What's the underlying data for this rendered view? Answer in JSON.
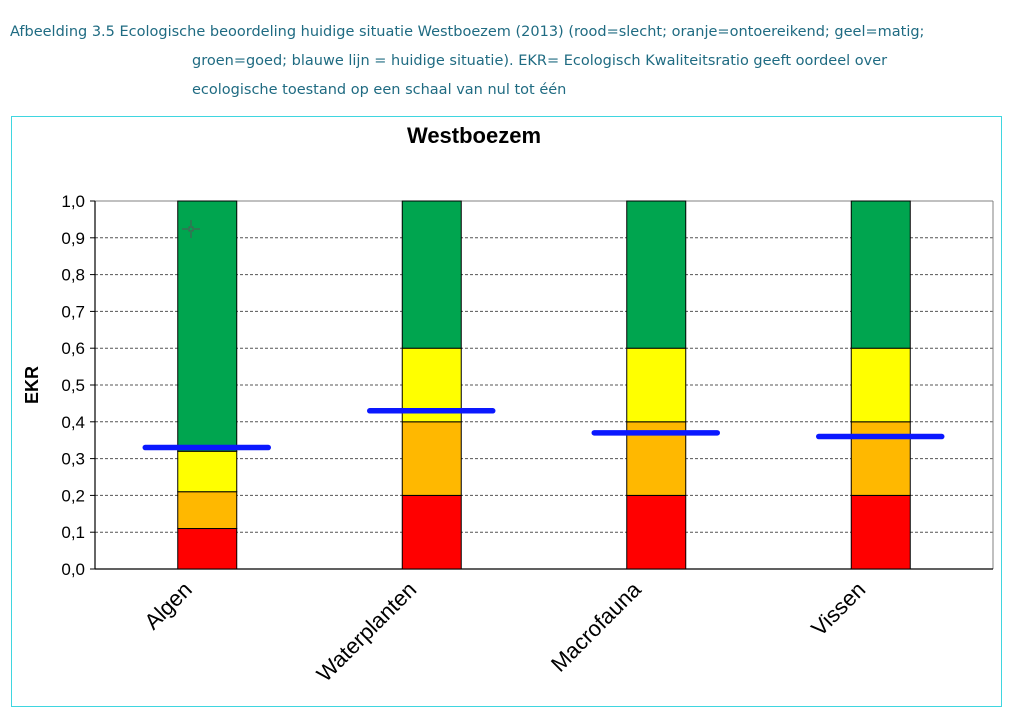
{
  "caption": {
    "line1": "Afbeelding 3.5 Ecologische beoordeling huidige situatie Westboezem (2013) (rood=slecht; oranje=ontoereikend; geel=matig;",
    "line2": "groen=goed; blauwe lijn = huidige situatie). EKR= Ecologisch Kwaliteitsratio geeft oordeel over",
    "line3": "ecologische toestand op een schaal van nul tot één"
  },
  "chart_data": {
    "type": "bar",
    "title": "Westboezem",
    "ylabel": "EKR",
    "xlabel": "",
    "ylim": [
      0,
      1
    ],
    "yticks": [
      "0,0",
      "0,1",
      "0,2",
      "0,3",
      "0,4",
      "0,5",
      "0,6",
      "0,7",
      "0,8",
      "0,9",
      "1,0"
    ],
    "grid": true,
    "categories": [
      "Algen",
      "Waterplanten",
      "Macrofauna",
      "Vissen"
    ],
    "stacked": true,
    "series": [
      {
        "color": "#ff0000",
        "values": [
          0.11,
          0.2,
          0.2,
          0.2
        ]
      },
      {
        "color": "#ffb800",
        "values": [
          0.1,
          0.2,
          0.2,
          0.2
        ]
      },
      {
        "color": "#ffff00",
        "values": [
          0.11,
          0.2,
          0.2,
          0.2
        ]
      },
      {
        "color": "#00a54f",
        "values": [
          0.68,
          0.4,
          0.4,
          0.4
        ]
      }
    ],
    "current_situation": {
      "color": "#0a18ff",
      "values": [
        0.33,
        0.43,
        0.37,
        0.36
      ]
    }
  },
  "icons": {
    "cursor": "crosshair-cursor-icon"
  }
}
